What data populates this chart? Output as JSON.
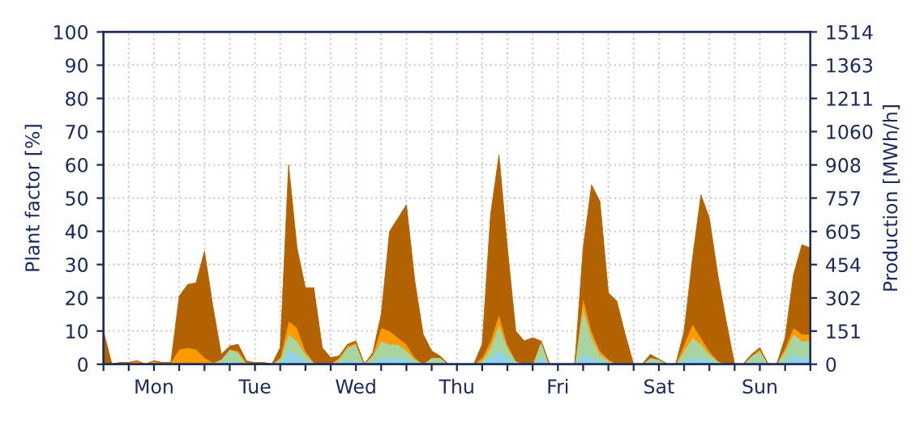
{
  "chart_data": {
    "type": "area",
    "stacked": true,
    "ylabel": "Plant factor [%]",
    "y2label": "Production [MWh/h]",
    "categories": [
      null,
      null,
      null,
      null,
      null,
      null,
      "Mon",
      null,
      null,
      null,
      null,
      null,
      null,
      null,
      null,
      null,
      null,
      null,
      "Tue",
      null,
      null,
      null,
      null,
      null,
      null,
      null,
      null,
      null,
      null,
      null,
      "Wed",
      null,
      null,
      null,
      null,
      null,
      null,
      null,
      null,
      null,
      null,
      null,
      "Thu",
      null,
      null,
      null,
      null,
      null,
      null,
      null,
      null,
      null,
      null,
      null,
      "Fri",
      null,
      null,
      null,
      null,
      null,
      null,
      null,
      null,
      null,
      null,
      null,
      "Sat",
      null,
      null,
      null,
      null,
      null,
      null,
      null,
      null,
      null,
      null,
      null,
      "Sun",
      null,
      null,
      null,
      null,
      null,
      null
    ],
    "series": [
      {
        "color": "#8fd3e8",
        "values": [
          0,
          0,
          0,
          0,
          0,
          0,
          0,
          0,
          0,
          0,
          0,
          0,
          0,
          0,
          0.5,
          1,
          0.5,
          0,
          0,
          0,
          0,
          0.5,
          4,
          3,
          1,
          0,
          0,
          0,
          0.5,
          1,
          1,
          0,
          0.5,
          2,
          2,
          2,
          1.5,
          0.5,
          0,
          0.5,
          0.5,
          0,
          0,
          0,
          0,
          0.5,
          2,
          4,
          2,
          0.5,
          0,
          0,
          2,
          0,
          0,
          0,
          0,
          3,
          2,
          1,
          0.5,
          0,
          0,
          0,
          0,
          0.5,
          0.5,
          0,
          0,
          1,
          2,
          2,
          1,
          0,
          0,
          0,
          0,
          0.5,
          1,
          0,
          0,
          1,
          3,
          2,
          2
        ]
      },
      {
        "color": "#a8d4a0",
        "values": [
          0,
          0,
          0,
          0,
          0,
          0,
          0,
          0,
          0.5,
          0,
          0,
          0,
          0,
          0,
          1,
          3.5,
          3,
          0,
          0,
          0,
          0,
          1,
          5,
          4,
          2,
          0.5,
          0,
          0,
          1,
          4,
          5,
          0,
          2,
          5,
          4,
          4,
          2.5,
          1,
          0,
          1.5,
          1.5,
          0,
          0,
          0,
          0,
          0.5,
          3,
          8,
          3,
          0.5,
          0,
          0,
          5,
          0,
          0,
          0,
          0,
          14,
          6,
          2,
          0.5,
          0,
          0,
          0,
          0,
          1.5,
          1,
          0,
          0,
          3,
          6,
          4,
          2,
          1,
          0,
          0,
          0,
          2,
          3,
          0,
          0,
          3,
          6,
          5,
          5
        ]
      },
      {
        "color": "#ff9900",
        "values": [
          0,
          0,
          0.5,
          0.5,
          1,
          0,
          1,
          0.5,
          0,
          4.5,
          5,
          4.5,
          2,
          0.5,
          0,
          0,
          0.5,
          0.5,
          0.5,
          0.5,
          0,
          0.5,
          4,
          4,
          1,
          0,
          0,
          0,
          0.5,
          0.5,
          0.5,
          0,
          0.5,
          4,
          4,
          2,
          2,
          0.5,
          0,
          0,
          0,
          0,
          0,
          0,
          0,
          1,
          2,
          3,
          1,
          0,
          0,
          0,
          0,
          0,
          0,
          0,
          0,
          3,
          2,
          1,
          0.5,
          0,
          0,
          0,
          0,
          0,
          0,
          0,
          0,
          2,
          4,
          2,
          1,
          0,
          0,
          0,
          0,
          0,
          0.5,
          0,
          0,
          1,
          2,
          2,
          2
        ]
      },
      {
        "color": "#b36200",
        "values": [
          10,
          0,
          0,
          0,
          0,
          0,
          0,
          0,
          0,
          16,
          19,
          20,
          32,
          17,
          1.5,
          1,
          2,
          0.5,
          0,
          0,
          0,
          3,
          47,
          24,
          19,
          22.5,
          5,
          2,
          0.5,
          0.5,
          0.5,
          0,
          0.5,
          4,
          30,
          36,
          42,
          23,
          9,
          2,
          0.5,
          0,
          0,
          0,
          0,
          4,
          38,
          48,
          29,
          9,
          7,
          8,
          0,
          0,
          0,
          0,
          0,
          15,
          44,
          45,
          20,
          19,
          9,
          0,
          0,
          1,
          0,
          0,
          0,
          4,
          20,
          43,
          40,
          26,
          13,
          0,
          0,
          0.5,
          0.5,
          0,
          0,
          3,
          16,
          27,
          26
        ]
      }
    ],
    "ylim": [
      0,
      100
    ],
    "yticks": [
      0,
      10,
      20,
      30,
      40,
      50,
      60,
      70,
      80,
      90,
      100
    ],
    "y2lim": [
      0,
      1514
    ],
    "y2ticks": [
      0,
      151,
      302,
      454,
      605,
      757,
      908,
      1060,
      1211,
      1363,
      1514
    ],
    "grid": true
  }
}
